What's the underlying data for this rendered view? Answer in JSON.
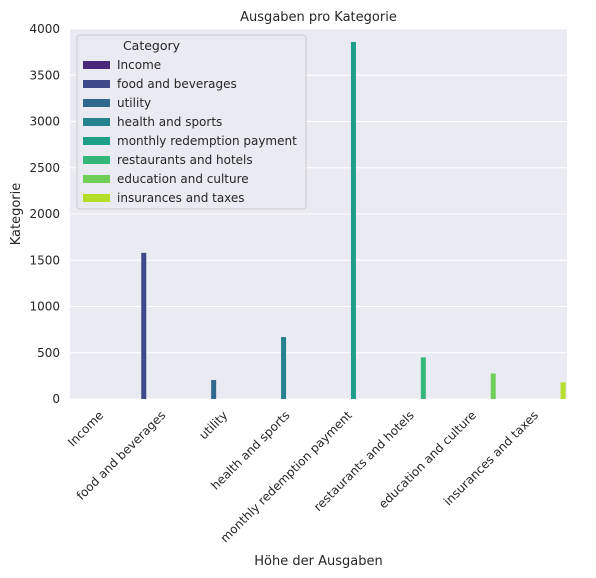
{
  "chart_data": {
    "type": "bar",
    "title": "Ausgaben pro Kategorie",
    "xlabel": "Höhe der Ausgaben",
    "ylabel": "Kategorie",
    "categories": [
      "Income",
      "food and beverages",
      "utility",
      "health and sports",
      "monthly redemption payment",
      "restaurants and hotels",
      "education and culture",
      "insurances and taxes"
    ],
    "values": [
      0,
      1580,
      205,
      670,
      3860,
      450,
      275,
      180
    ],
    "colors": [
      "#482878",
      "#3e4989",
      "#31688e",
      "#26828e",
      "#1f9e89",
      "#35b779",
      "#6ece58",
      "#b5de2b"
    ],
    "ylim": [
      0,
      4000
    ],
    "yticks": [
      0,
      500,
      1000,
      1500,
      2000,
      2500,
      3000,
      3500,
      4000
    ],
    "grid": true,
    "legend": {
      "title": "Category",
      "placement": "top-left",
      "entries": [
        "Income",
        "food and beverages",
        "utility",
        "health and sports",
        "monthly redemption payment",
        "restaurants and hotels",
        "education and culture",
        "insurances and taxes"
      ]
    }
  }
}
